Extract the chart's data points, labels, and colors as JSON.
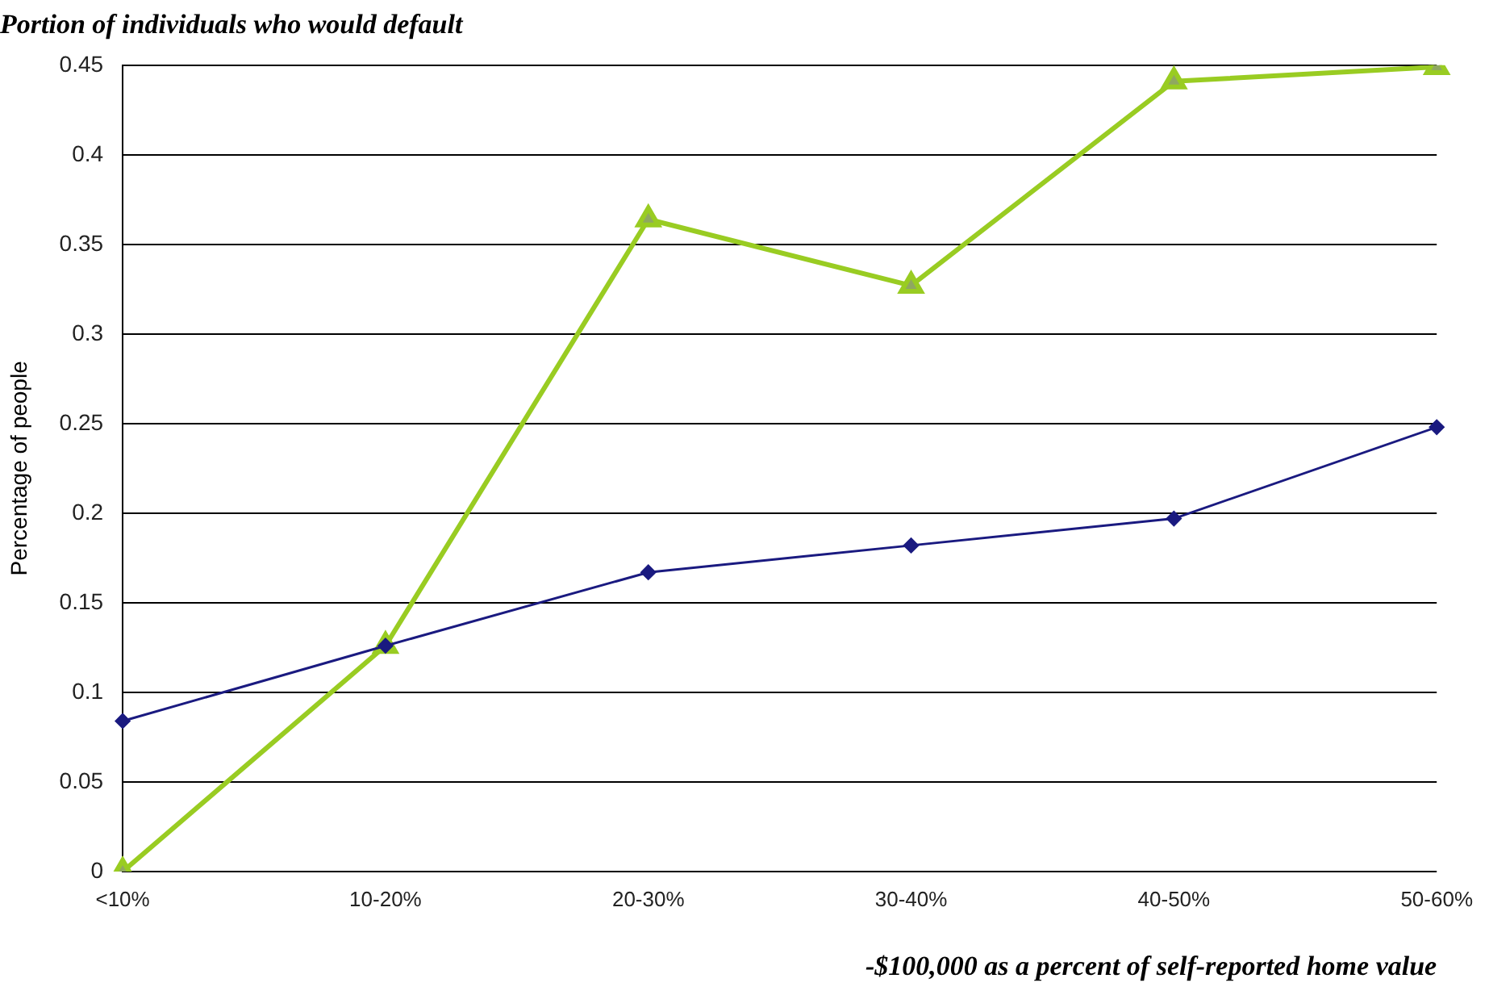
{
  "chart_data": {
    "type": "line",
    "title": "Portion of individuals who would default",
    "xlabel": "-$100,000 as a percent of self-reported home value",
    "ylabel": "Percentage of people",
    "categories": [
      "<10%",
      "10-20%",
      "20-30%",
      "30-40%",
      "40-50%",
      "50-60%"
    ],
    "series": [
      {
        "color": "#1a1a80",
        "marker": "diamond",
        "values": [
          0.084,
          0.126,
          0.167,
          0.182,
          0.197,
          0.248
        ]
      },
      {
        "color": "#99cc22",
        "marker": "triangle",
        "values": [
          0,
          0.126,
          0.364,
          0.327,
          0.441,
          0.449
        ]
      }
    ],
    "ylim": [
      0,
      0.45
    ],
    "yticks": [
      0,
      0.05,
      0.1,
      0.15,
      0.2,
      0.25,
      0.3,
      0.35,
      0.4,
      0.45
    ],
    "grid": "y",
    "legend": false
  }
}
